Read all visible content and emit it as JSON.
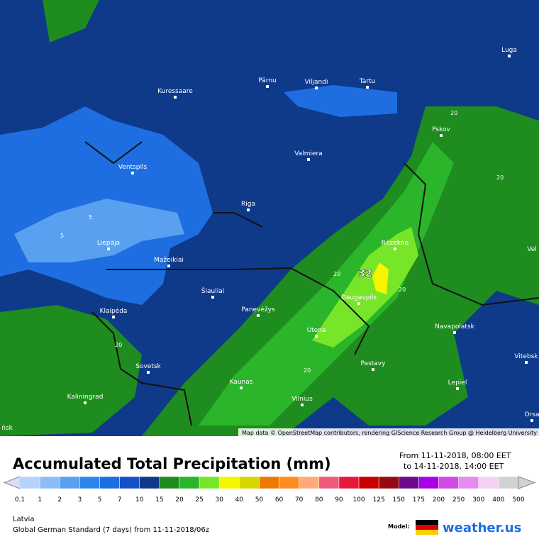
{
  "map": {
    "cities": [
      "Luga",
      "Pärnu",
      "Viljandi",
      "Tartu",
      "Kuressaare",
      "Pskov",
      "Valmiera",
      "Ventspils",
      "Riga",
      "Rēzekne",
      "Liepāja",
      "Mažeikiai",
      "Šiauliai",
      "Panevėžys",
      "Daugavpils",
      "Klaipėda",
      "Navapolatsk",
      "Utena",
      "Vitebsk",
      "Sovetsk",
      "Pastavy",
      "Kaunas",
      "Lepiel",
      "Kaliningrad",
      "Vilnius",
      "Orsa",
      "Vel",
      "ńsk"
    ],
    "contour_labels": [
      "20",
      "20",
      "5",
      "5",
      "20",
      "20",
      "20",
      "20"
    ],
    "max_label": "32",
    "attribution": "Map data © OpenStreetMap contributors, rendering GIScience Research Group @ Heidelberg University"
  },
  "footer": {
    "title": "Accumulated Total Precipitation (mm)",
    "from": "From 11-11-2018, 08:00 EET",
    "to": "to 14-11-2018, 14:00 EET",
    "legend": {
      "labels": [
        "0.1",
        "1",
        "2",
        "3",
        "5",
        "7",
        "10",
        "15",
        "20",
        "25",
        "30",
        "40",
        "50",
        "60",
        "70",
        "80",
        "90",
        "100",
        "125",
        "150",
        "175",
        "200",
        "250",
        "300",
        "400",
        "500"
      ],
      "colors": [
        "#dcdcf5",
        "#b4d2fa",
        "#8cbef5",
        "#5aa0f0",
        "#2d87eb",
        "#1e6ee1",
        "#1450c8",
        "#0f3a8a",
        "#1e8c1e",
        "#2ab52a",
        "#78e628",
        "#f5f500",
        "#d6d600",
        "#f07800",
        "#ff8c1e",
        "#ffaa78",
        "#f05a7a",
        "#e6193c",
        "#c80000",
        "#960a14",
        "#6e0a8c",
        "#aa00e6",
        "#d24be6",
        "#e68cf0",
        "#f5d2f5",
        "#d2d2d2"
      ]
    },
    "region": "Latvia",
    "model_run": "Global German Standard (7 days) from 11-11-2018/06z",
    "model_label": "Model:",
    "brand": "weather.us"
  }
}
